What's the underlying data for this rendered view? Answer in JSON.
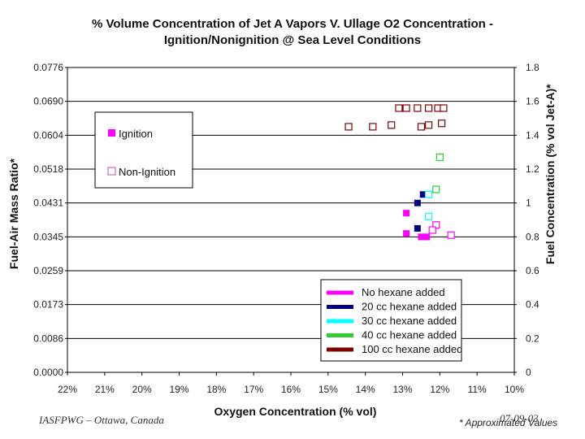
{
  "chart_data": {
    "type": "scatter",
    "title": "% Volume Concentration of Jet A Vapors V. Ullage O2 Concentration - Ignition/Nonignition @ Sea Level Conditions",
    "title_lines": [
      "% Volume Concentration of Jet A Vapors V. Ullage O2 Concentration -",
      "Ignition/Nonignition @ Sea Level Conditions"
    ],
    "xlabel": "Oxygen Concentration (% vol)",
    "ylabel_left": "Fuel-Air Mass Ratio*",
    "ylabel_right": "Fuel Concentration (% vol Jet-A)*",
    "x_ticks": [
      "22%",
      "21%",
      "20%",
      "19%",
      "18%",
      "17%",
      "16%",
      "15%",
      "14%",
      "13%",
      "12%",
      "11%",
      "10%"
    ],
    "xlim": [
      22,
      10
    ],
    "y_left_ticks": [
      "0.0000",
      "0.0086",
      "0.0173",
      "0.0259",
      "0.0345",
      "0.0431",
      "0.0518",
      "0.0604",
      "0.0690",
      "0.0776"
    ],
    "y_right_ticks": [
      "0",
      "0.2",
      "0.4",
      "0.6",
      "0.8",
      "1",
      "1.2",
      "1.4",
      "1.6",
      "1.8"
    ],
    "ylim_right": [
      0,
      1.8
    ],
    "grid": true,
    "legend_type": [
      {
        "label": "Ignition",
        "marker": "filled-square",
        "color": "#ff00ff"
      },
      {
        "label": "Non-Ignition",
        "marker": "open-square",
        "color": "#cc66cc"
      }
    ],
    "legend_series": [
      {
        "label": "No hexane added",
        "color": "#ff00ff"
      },
      {
        "label": "20 cc hexane added",
        "color": "#000080"
      },
      {
        "label": "30 cc hexane added",
        "color": "#00ffff"
      },
      {
        "label": "40 cc hexane added",
        "color": "#33cc33"
      },
      {
        "label": "100 cc hexane added",
        "color": "#800000"
      }
    ],
    "series": [
      {
        "name": "No hexane added",
        "color": "#ff00ff",
        "points": [
          {
            "x": 12.9,
            "y": 0.82,
            "ignition": true
          },
          {
            "x": 12.5,
            "y": 0.8,
            "ignition": true
          },
          {
            "x": 12.35,
            "y": 0.8,
            "ignition": true
          },
          {
            "x": 12.9,
            "y": 0.94,
            "ignition": true
          },
          {
            "x": 12.1,
            "y": 0.87,
            "ignition": false
          },
          {
            "x": 11.7,
            "y": 0.81,
            "ignition": false
          },
          {
            "x": 12.2,
            "y": 0.84,
            "ignition": false
          }
        ]
      },
      {
        "name": "20 cc hexane added",
        "color": "#000080",
        "points": [
          {
            "x": 12.6,
            "y": 0.85,
            "ignition": true
          },
          {
            "x": 12.6,
            "y": 1.0,
            "ignition": true
          },
          {
            "x": 12.45,
            "y": 1.05,
            "ignition": true
          }
        ]
      },
      {
        "name": "30 cc hexane added",
        "color": "#00ffff",
        "points": [
          {
            "x": 12.3,
            "y": 1.05,
            "ignition": false
          },
          {
            "x": 12.3,
            "y": 0.92,
            "ignition": false
          }
        ]
      },
      {
        "name": "40 cc hexane added",
        "color": "#33cc33",
        "points": [
          {
            "x": 12.0,
            "y": 1.27,
            "ignition": false
          },
          {
            "x": 12.1,
            "y": 1.08,
            "ignition": false
          }
        ]
      },
      {
        "name": "100 cc hexane added",
        "color": "#800000",
        "points": [
          {
            "x": 14.45,
            "y": 1.45,
            "ignition": false
          },
          {
            "x": 13.8,
            "y": 1.45,
            "ignition": false
          },
          {
            "x": 13.3,
            "y": 1.46,
            "ignition": false
          },
          {
            "x": 13.1,
            "y": 1.56,
            "ignition": false
          },
          {
            "x": 12.9,
            "y": 1.56,
            "ignition": false
          },
          {
            "x": 12.6,
            "y": 1.56,
            "ignition": false
          },
          {
            "x": 12.3,
            "y": 1.56,
            "ignition": false
          },
          {
            "x": 12.05,
            "y": 1.56,
            "ignition": false
          },
          {
            "x": 11.9,
            "y": 1.56,
            "ignition": false
          },
          {
            "x": 11.95,
            "y": 1.47,
            "ignition": false
          },
          {
            "x": 12.3,
            "y": 1.46,
            "ignition": false
          },
          {
            "x": 12.5,
            "y": 1.45,
            "ignition": false
          }
        ]
      }
    ]
  },
  "footer": {
    "left": "IASFPWG – Ottawa, Canada",
    "right": "07-09-03",
    "note": "* Approximated Values"
  }
}
